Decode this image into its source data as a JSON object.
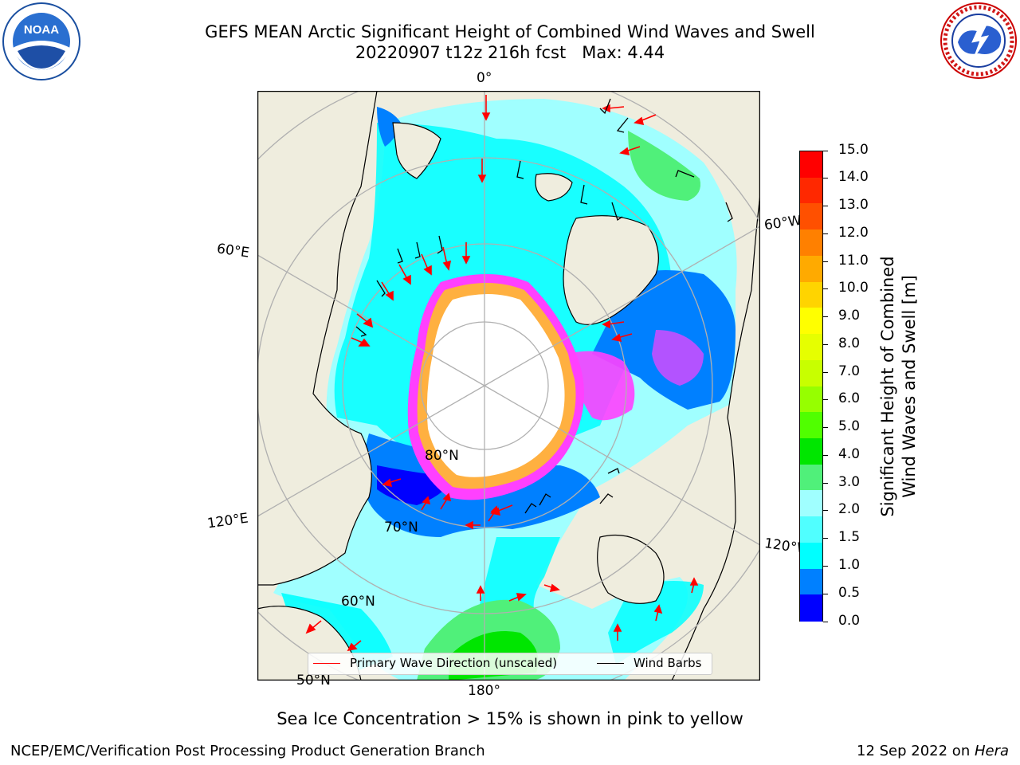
{
  "title_line1": "GEFS MEAN Arctic Significant Height of Combined Wind Waves and Swell",
  "title_line2": "20220907 t12z 216h fcst   Max: 4.44",
  "logos": {
    "noaa_text": "NOAA",
    "noaa_ring": "NATIONAL OCEANIC AND ATMOSPHERIC ADMINISTRATION · U.S. DEPARTMENT OF COMMERCE",
    "nws_ring": "NATIONAL WEATHER SERVICE"
  },
  "map": {
    "longitude_labels": [
      "0°",
      "60°W",
      "120°W",
      "180°",
      "120°E",
      "60°E"
    ],
    "latitude_labels": [
      "80°N",
      "70°N",
      "60°N",
      "50°N"
    ],
    "colors": {
      "land": "#efedde",
      "coast": "#000000",
      "grid": "#b0b0b0",
      "ice_pink": "#ff40ff",
      "ice_orange": "#ffb040",
      "wave_arrow": "#ff0000",
      "barb": "#000000"
    }
  },
  "legend": {
    "primary_wave_label": "Primary Wave Direction (unscaled)",
    "primary_wave_color": "#ff0000",
    "wind_barbs_label": "Wind Barbs",
    "wind_barbs_color": "#000000"
  },
  "colorbar": {
    "label_line1": "Significant Height of Combined",
    "label_line2": "Wind Waves and Swell [m]",
    "ticks": [
      "15.0",
      "14.0",
      "13.0",
      "12.0",
      "11.0",
      "10.0",
      "9.0",
      "8.0",
      "7.0",
      "6.0",
      "5.0",
      "4.0",
      "3.0",
      "2.0",
      "1.5",
      "1.0",
      "0.5",
      "0.0"
    ],
    "bins_top_to_bottom": [
      "#ff0000",
      "#ff2800",
      "#ff5000",
      "#ff8000",
      "#ffaa00",
      "#ffd400",
      "#ffff00",
      "#e6ff00",
      "#c8ff00",
      "#96ff00",
      "#50ff00",
      "#00e600",
      "#50f07a",
      "#a0ffff",
      "#50ffff",
      "#00ffff",
      "#0080ff",
      "#0000ff"
    ]
  },
  "caption": "Sea Ice Concentration > 15% is shown in pink to yellow",
  "footer": {
    "left": "NCEP/EMC/Verification Post Processing Product Generation Branch",
    "right_prefix": "12 Sep 2022 on ",
    "right_machine": "Hera"
  }
}
